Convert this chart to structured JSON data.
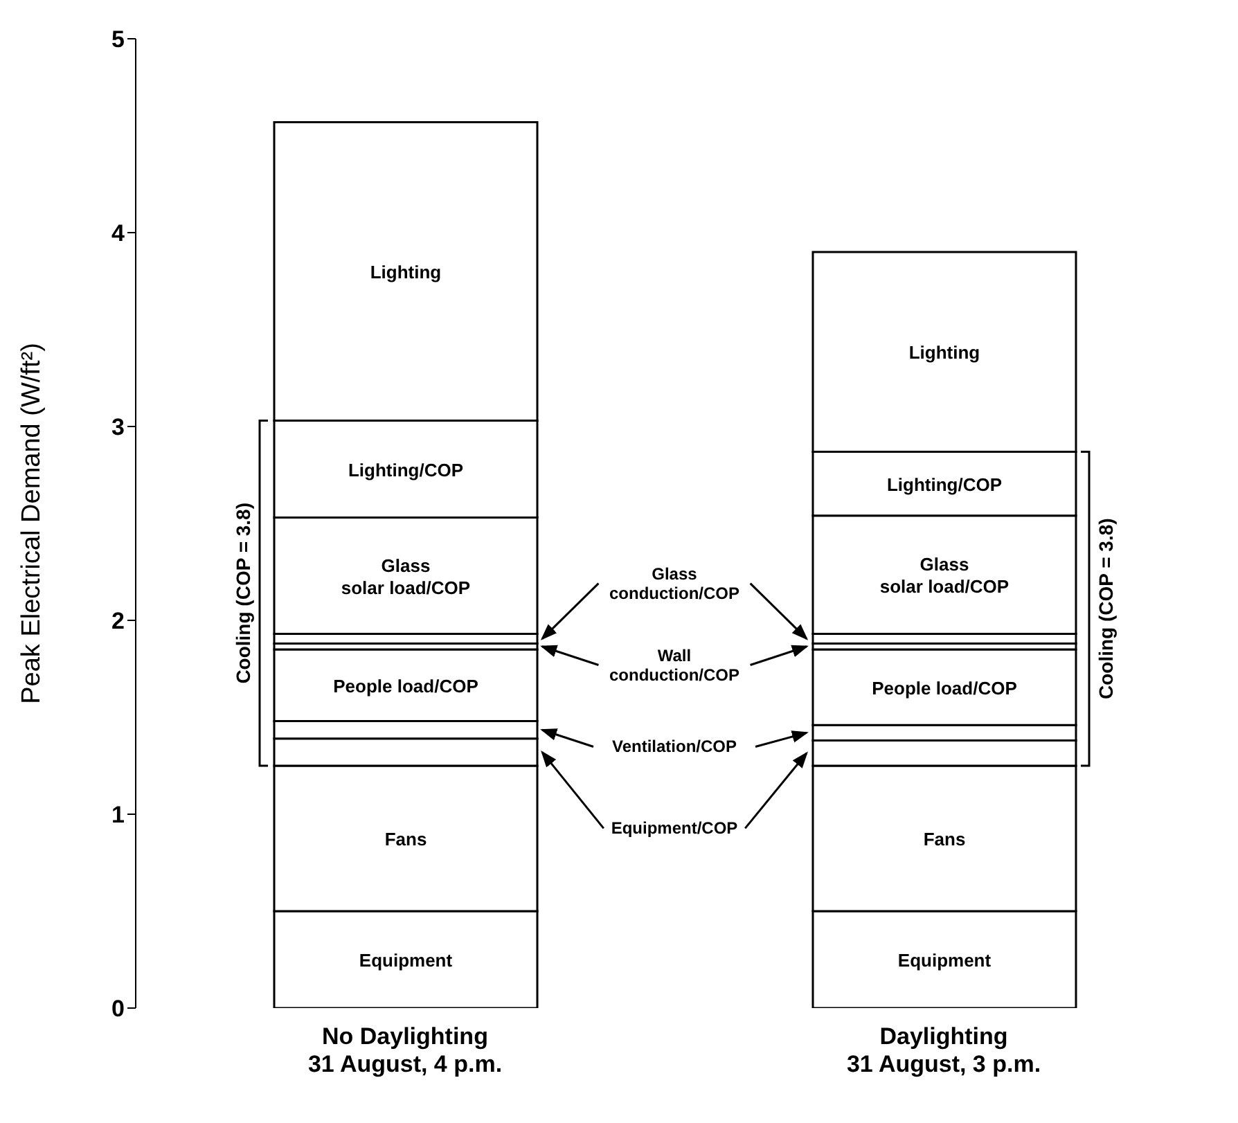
{
  "chart_data": {
    "type": "bar",
    "stacked": true,
    "ylabel": "Peak Electrical Demand (W/ft²)",
    "categories": [
      "No Daylighting\n31 August, 4 p.m.",
      "Daylighting\n31 August, 3 p.m."
    ],
    "series": [
      {
        "name": "Equipment",
        "color": "#ffffff",
        "values": [
          0.5,
          0.5
        ]
      },
      {
        "name": "Fans",
        "color": "#ffffff",
        "values": [
          0.75,
          0.75
        ]
      },
      {
        "name": "Equipment/COP",
        "color": "#ffffff",
        "values": [
          0.14,
          0.13
        ]
      },
      {
        "name": "Ventilation/COP",
        "color": "#ffffff",
        "values": [
          0.09,
          0.08
        ]
      },
      {
        "name": "People load/COP",
        "color": "#ffffff",
        "values": [
          0.37,
          0.39
        ]
      },
      {
        "name": "Wall conduction/COP",
        "color": "#ffffff",
        "values": [
          0.03,
          0.03
        ]
      },
      {
        "name": "Glass conduction/COP",
        "color": "#ffffff",
        "values": [
          0.05,
          0.05
        ]
      },
      {
        "name": "Glass solar load/COP",
        "color": "#ffffff",
        "values": [
          0.6,
          0.61
        ]
      },
      {
        "name": "Lighting/COP",
        "color": "#ffffff",
        "values": [
          0.5,
          0.33
        ]
      },
      {
        "name": "Lighting",
        "color": "#ffffff",
        "values": [
          1.54,
          1.03
        ]
      }
    ],
    "ylim": [
      0,
      5
    ],
    "yticks": [
      0,
      1,
      2,
      3,
      4,
      5
    ],
    "grid": false,
    "legend": "center",
    "annotations": [
      "Cooling (COP = 3.8)",
      "Cooling (COP = 3.8)"
    ]
  }
}
